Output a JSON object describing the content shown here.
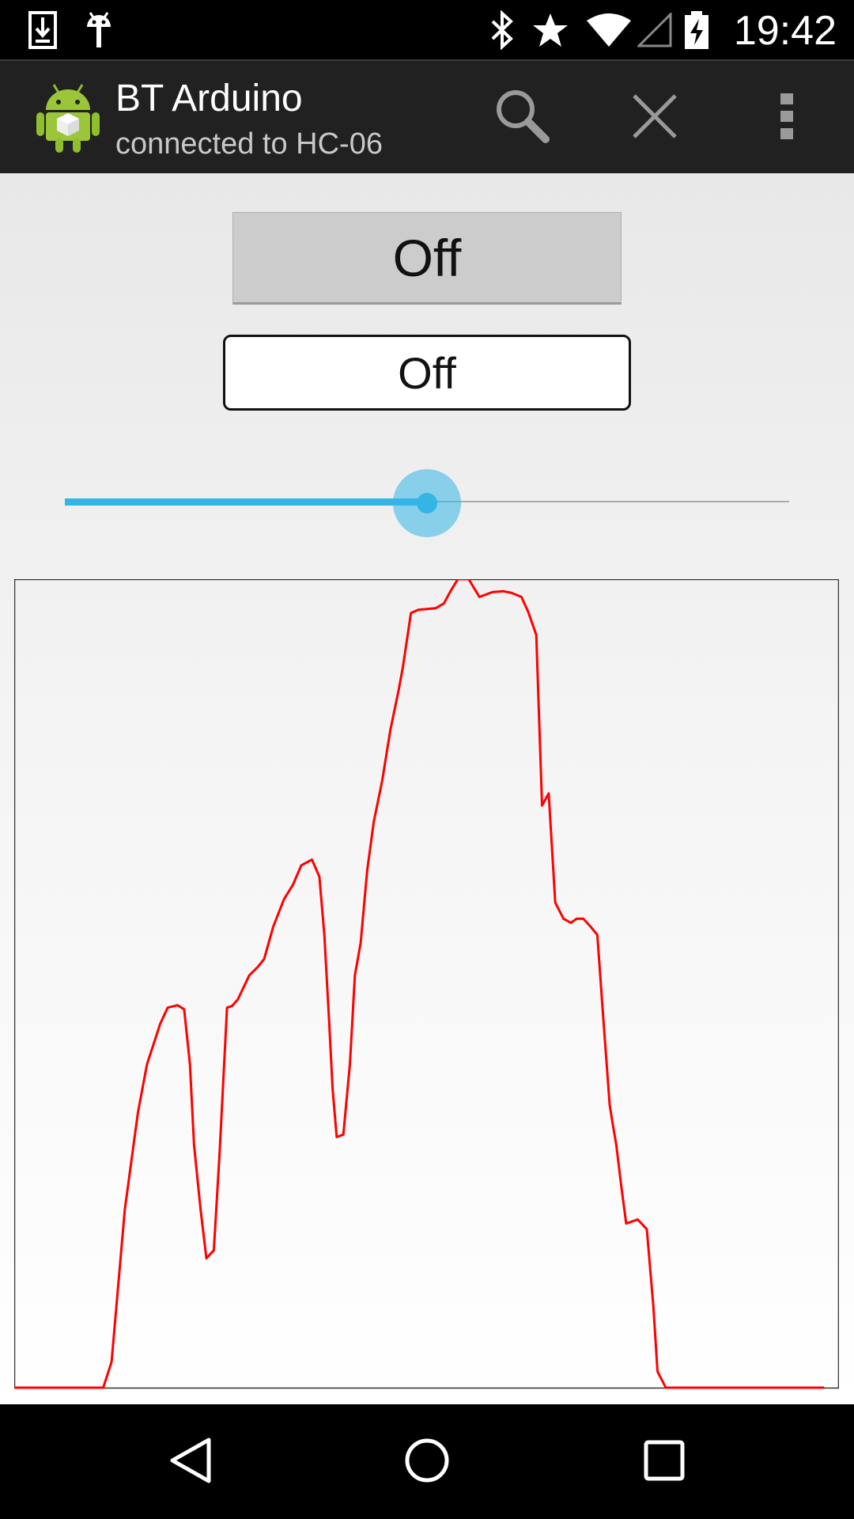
{
  "status_bar": {
    "time": "19:42",
    "icons": [
      "download-icon",
      "android-debug-icon",
      "bluetooth-icon",
      "star-icon",
      "wifi-icon",
      "signal-icon",
      "battery-charging-icon"
    ]
  },
  "action_bar": {
    "title": "BT Arduino",
    "subtitle": "connected to HC-06",
    "actions": [
      "search-icon",
      "close-icon",
      "overflow-menu-icon"
    ]
  },
  "controls": {
    "primary_button_label": "Off",
    "toggle_button_label": "Off",
    "slider_value_fraction": 0.5
  },
  "graph": {
    "line_color": "#ff0000",
    "border_color": "#333333"
  },
  "chart_data": {
    "type": "line",
    "y_min": 0,
    "y_max": 100,
    "x_max": 100,
    "points": [
      [
        0,
        0
      ],
      [
        10.8,
        0
      ],
      [
        11.8,
        3.2
      ],
      [
        13.4,
        22
      ],
      [
        15,
        34
      ],
      [
        16.1,
        40
      ],
      [
        17.7,
        45
      ],
      [
        18.6,
        47
      ],
      [
        19.8,
        47.3
      ],
      [
        20.6,
        46.8
      ],
      [
        21.3,
        40
      ],
      [
        21.8,
        30
      ],
      [
        22.6,
        22
      ],
      [
        23.3,
        16
      ],
      [
        24.2,
        17
      ],
      [
        24.9,
        29
      ],
      [
        25.8,
        47
      ],
      [
        26.4,
        47.2
      ],
      [
        27.1,
        48
      ],
      [
        28.5,
        51
      ],
      [
        29.5,
        52
      ],
      [
        30.3,
        53
      ],
      [
        31.4,
        57
      ],
      [
        32.7,
        60.4
      ],
      [
        33.8,
        62.2
      ],
      [
        34.8,
        64.6
      ],
      [
        36.1,
        65.3
      ],
      [
        37,
        63.2
      ],
      [
        37.6,
        56
      ],
      [
        38.2,
        45
      ],
      [
        38.6,
        37
      ],
      [
        39.1,
        31
      ],
      [
        39.9,
        31.3
      ],
      [
        40.7,
        40
      ],
      [
        41.3,
        51
      ],
      [
        42,
        55
      ],
      [
        42.8,
        64
      ],
      [
        43.6,
        70
      ],
      [
        44.6,
        75
      ],
      [
        45.6,
        81.3
      ],
      [
        46.6,
        86.2
      ],
      [
        47.1,
        89
      ],
      [
        48.1,
        95.8
      ],
      [
        49,
        96.2
      ],
      [
        51.1,
        96.4
      ],
      [
        52.1,
        97
      ],
      [
        52.9,
        98.5
      ],
      [
        53.8,
        100
      ],
      [
        55.1,
        100
      ],
      [
        56.4,
        97.8
      ],
      [
        58,
        98.4
      ],
      [
        59.3,
        98.5
      ],
      [
        60.3,
        98.3
      ],
      [
        61.5,
        97.8
      ],
      [
        62.3,
        96
      ],
      [
        63.3,
        93.1
      ],
      [
        64,
        72
      ],
      [
        64.8,
        73.5
      ],
      [
        65.6,
        60
      ],
      [
        66.6,
        58
      ],
      [
        67.5,
        57.5
      ],
      [
        68.2,
        58
      ],
      [
        69,
        58
      ],
      [
        69.9,
        57
      ],
      [
        70.7,
        56
      ],
      [
        71.4,
        46
      ],
      [
        72.2,
        35
      ],
      [
        72.5,
        33
      ],
      [
        73,
        30
      ],
      [
        73.6,
        25
      ],
      [
        74.2,
        20.3
      ],
      [
        75.6,
        20.8
      ],
      [
        76.7,
        19.6
      ],
      [
        77.5,
        10
      ],
      [
        78,
        2
      ],
      [
        79,
        0
      ],
      [
        98.2,
        0
      ]
    ]
  }
}
